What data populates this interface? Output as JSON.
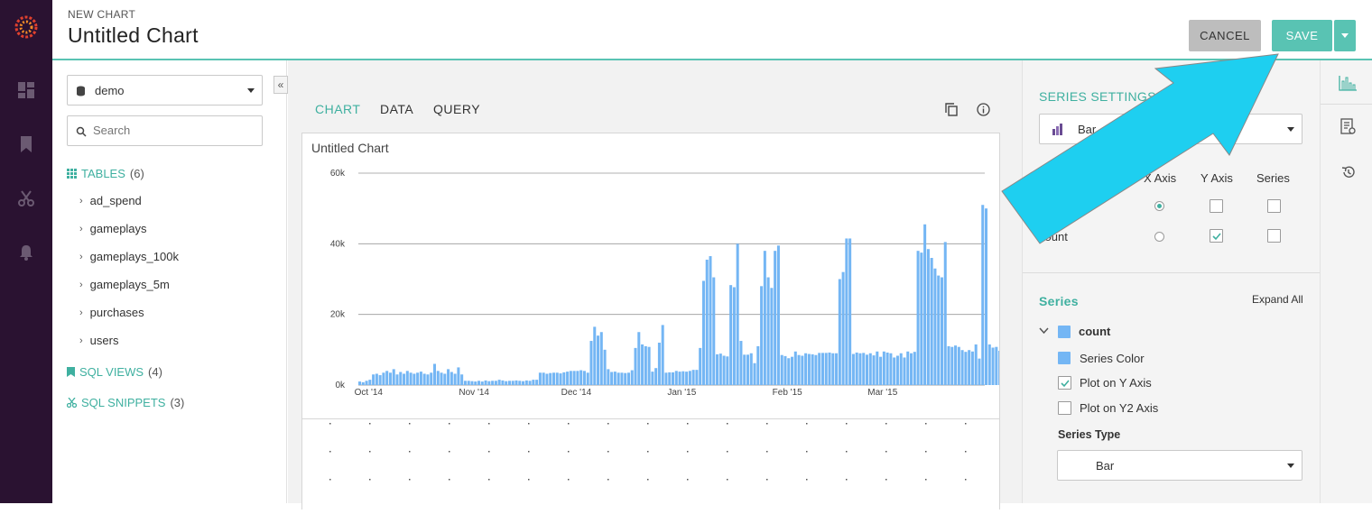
{
  "header": {
    "eyebrow": "NEW CHART",
    "title": "Untitled Chart",
    "cancel_label": "CANCEL",
    "save_label": "SAVE"
  },
  "left_panel": {
    "datasource": "demo",
    "search_placeholder": "Search",
    "tables_label": "TABLES",
    "tables_count": "(6)",
    "tables": [
      "ad_spend",
      "gameplays",
      "gameplays_100k",
      "gameplays_5m",
      "purchases",
      "users"
    ],
    "sql_views_label": "SQL VIEWS",
    "sql_views_count": "(4)",
    "sql_snippets_label": "SQL SNIPPETS",
    "sql_snippets_count": "(3)"
  },
  "center": {
    "tabs": [
      "CHART",
      "DATA",
      "QUERY"
    ],
    "active_tab": "CHART"
  },
  "chart_data": {
    "type": "bar",
    "title": "Untitled Chart",
    "xlabel": "",
    "ylabel": "",
    "ylim": [
      0,
      60000
    ],
    "y_ticks": [
      "0k",
      "20k",
      "40k",
      "60k"
    ],
    "x_ticks": [
      "Oct '14",
      "Nov '14",
      "Dec '14",
      "Jan '15",
      "Feb '15",
      "Mar '15"
    ],
    "x_range": [
      "2014-09-28",
      "2015-03-31"
    ],
    "grid": true,
    "color": "#74b6f4",
    "series": [
      {
        "name": "count",
        "x_start": "2014-09-28",
        "step": "1 day",
        "values": [
          1000,
          800,
          1200,
          1500,
          3000,
          3200,
          2800,
          3500,
          4000,
          3500,
          4500,
          3000,
          3700,
          3200,
          4000,
          3500,
          3200,
          3500,
          3800,
          3200,
          3000,
          3500,
          6000,
          4000,
          3500,
          3200,
          4500,
          3700,
          3200,
          5000,
          3000,
          1200,
          1200,
          1100,
          1000,
          1200,
          1000,
          1300,
          1100,
          1200,
          1200,
          1500,
          1300,
          1100,
          1200,
          1200,
          1300,
          1200,
          1100,
          1300,
          1200,
          1500,
          1500,
          3500,
          3500,
          3200,
          3400,
          3500,
          3500,
          3300,
          3600,
          3800,
          4000,
          4000,
          4000,
          4200,
          4000,
          3500,
          12500,
          16500,
          14000,
          15000,
          10000,
          4500,
          3700,
          3800,
          3500,
          3500,
          3400,
          3500,
          4200,
          10500,
          15000,
          11500,
          11000,
          10800,
          3800,
          4800,
          12000,
          17000,
          3500,
          3600,
          3600,
          4000,
          3800,
          3900,
          3800,
          4000,
          4300,
          4300,
          10500,
          29500,
          35500,
          36500,
          30500,
          8700,
          8900,
          8300,
          8100,
          28300,
          27700,
          40000,
          12500,
          8600,
          8600,
          9000,
          6200,
          11000,
          28000,
          38000,
          30500,
          27500,
          38000,
          39500,
          8500,
          8200,
          7600,
          8000,
          9500,
          8500,
          8300,
          9000,
          8800,
          8700,
          8500,
          9100,
          9100,
          9100,
          9200,
          9000,
          9000,
          30000,
          32000,
          41500,
          41500,
          8800,
          9200,
          9000,
          9100,
          8600,
          9000,
          8400,
          9500,
          8000,
          9500,
          9200,
          9000,
          7800,
          8300,
          9000,
          7800,
          9500,
          9000,
          9400,
          38000,
          37500,
          45500,
          38500,
          36000,
          33000,
          31000,
          30500,
          40500,
          11000,
          10800,
          11200,
          10800,
          9900,
          9400,
          9900,
          9500,
          11500,
          7500,
          51000,
          50000,
          11500,
          10600,
          10800,
          9700,
          11000,
          9900,
          10400,
          10200,
          11000,
          10600,
          10400,
          10300,
          10200,
          11200,
          10400,
          9500,
          7800,
          9300,
          11000,
          10500,
          10000,
          10800
        ],
        "values_unit": "count per day"
      }
    ]
  },
  "right_panel": {
    "series_settings_label": "SERIES SETTINGS",
    "chart_type": "Bar",
    "col_x_axis": "X Axis",
    "col_y_axis": "Y Axis",
    "col_series": "Series",
    "row2_label": "count",
    "series_label": "Series",
    "expand_all": "Expand All",
    "series_name": "count",
    "series_color_label": "Series Color",
    "plot_y_label": "Plot on Y Axis",
    "plot_y2_label": "Plot on Y2 Axis",
    "series_type_label": "Series Type",
    "series_type_value": "Bar",
    "accent": "#59c3b3",
    "series_color": "#74b6f4"
  },
  "annotation": {
    "arrow_color": "#1ecff0"
  }
}
